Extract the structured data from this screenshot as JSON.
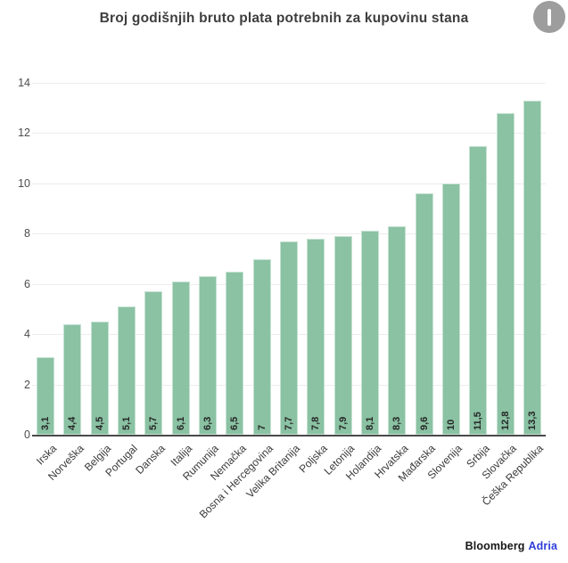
{
  "header": {
    "title": "Broj godišnjih bruto plata potrebnih za kupovinu stana",
    "widget_button_icon": "monitor-icon"
  },
  "chart_data": {
    "type": "bar",
    "title": "Broj godišnjih bruto plata potrebnih za kupovinu stana",
    "categories": [
      "Irska",
      "Norveška",
      "Belgija",
      "Portugal",
      "Danska",
      "Italija",
      "Rumunija",
      "Nemačka",
      "Bosna i Hercegovina",
      "Velika Britanija",
      "Poljska",
      "Letonija",
      "Holandija",
      "Hrvatska",
      "Mađarska",
      "Slovenija",
      "Srbija",
      "Slovačka",
      "Češka Republika"
    ],
    "values": [
      3.1,
      4.4,
      4.5,
      5.1,
      5.7,
      6.1,
      6.3,
      6.5,
      7,
      7.7,
      7.8,
      7.9,
      8.1,
      8.3,
      9.6,
      10,
      11.5,
      12.8,
      13.3
    ],
    "value_labels": [
      "3,1",
      "4,4",
      "4,5",
      "5,1",
      "5,7",
      "6,1",
      "6,3",
      "6,5",
      "7",
      "7,7",
      "7,8",
      "7,9",
      "8,1",
      "8,3",
      "9,6",
      "10",
      "11,5",
      "12,8",
      "13,3"
    ],
    "yticks": [
      0,
      2,
      4,
      6,
      8,
      10,
      12,
      14
    ],
    "ylim": [
      0,
      14
    ],
    "xlabel": "",
    "ylabel": "",
    "grid": true,
    "legend": false,
    "bar_color": "#8ac2a3",
    "bar_border_color": "#c5e2d2",
    "grid_color": "#ececec",
    "axis_color": "#4a4a4a"
  },
  "footer": {
    "brand_bloomberg": "Bloomberg",
    "brand_adria": "Adria",
    "brand_adria_color": "#2e3ed8"
  }
}
